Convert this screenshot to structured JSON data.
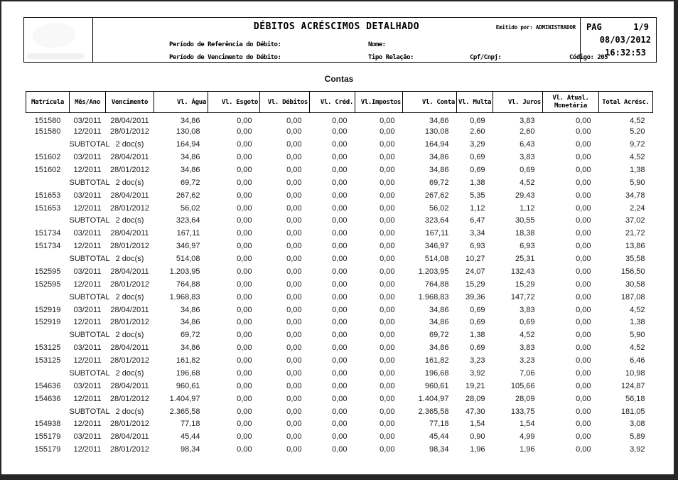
{
  "colors": {
    "frame": "#262626",
    "page_background": "#ffffff",
    "text": "#000000",
    "data_text": "#1a1a1a"
  },
  "header": {
    "title": "DÉBITOS ACRÉSCIMOS DETALHADO",
    "emitted_by": "Emitido por: ADMINISTRADOR",
    "pag_label": "PAG",
    "pag_value": "1/9",
    "date": "08/03/2012",
    "time": "16:32:53",
    "filters": {
      "ref_label": "Período de Referência do Débito:",
      "venc_label": "Período de Vencimento do Débito:",
      "nome_label": "Nome:",
      "tipo_label": "Tipo Relação:",
      "cpf_label": "Cpf/Cnpj:",
      "codigo_label": "Código: 205"
    }
  },
  "section_title": "Contas",
  "table": {
    "columns": [
      "Matrícula",
      "Mês/Ano",
      "Vencimento",
      "Vl. Água",
      "Vl. Esgoto",
      "Vl. Débitos",
      "Vl. Créd.",
      "Vl.Impostos",
      "Vl. Conta",
      "Vl. Multa",
      "Vl. Juros",
      "Vl. Atual. Monetária",
      "Total Acrésc."
    ],
    "rows": [
      [
        "151580",
        "03/2011",
        "28/04/2011",
        "34,86",
        "0,00",
        "0,00",
        "0,00",
        "0,00",
        "34,86",
        "0,69",
        "3,83",
        "0,00",
        "4,52"
      ],
      [
        "151580",
        "12/2011",
        "28/01/2012",
        "130,08",
        "0,00",
        "0,00",
        "0,00",
        "0,00",
        "130,08",
        "2,60",
        "2,60",
        "0,00",
        "5,20"
      ],
      [
        "",
        "SUBTOTAL",
        "2 doc(s)",
        "164,94",
        "0,00",
        "0,00",
        "0,00",
        "0,00",
        "164,94",
        "3,29",
        "6,43",
        "0,00",
        "9,72"
      ],
      [
        "151602",
        "03/2011",
        "28/04/2011",
        "34,86",
        "0,00",
        "0,00",
        "0,00",
        "0,00",
        "34,86",
        "0,69",
        "3,83",
        "0,00",
        "4,52"
      ],
      [
        "151602",
        "12/2011",
        "28/01/2012",
        "34,86",
        "0,00",
        "0,00",
        "0,00",
        "0,00",
        "34,86",
        "0,69",
        "0,69",
        "0,00",
        "1,38"
      ],
      [
        "",
        "SUBTOTAL",
        "2 doc(s)",
        "69,72",
        "0,00",
        "0,00",
        "0,00",
        "0,00",
        "69,72",
        "1,38",
        "4,52",
        "0,00",
        "5,90"
      ],
      [
        "151653",
        "03/2011",
        "28/04/2011",
        "267,62",
        "0,00",
        "0,00",
        "0,00",
        "0,00",
        "267,62",
        "5,35",
        "29,43",
        "0,00",
        "34,78"
      ],
      [
        "151653",
        "12/2011",
        "28/01/2012",
        "56,02",
        "0,00",
        "0,00",
        "0,00",
        "0,00",
        "56,02",
        "1,12",
        "1,12",
        "0,00",
        "2,24"
      ],
      [
        "",
        "SUBTOTAL",
        "2 doc(s)",
        "323,64",
        "0,00",
        "0,00",
        "0,00",
        "0,00",
        "323,64",
        "6,47",
        "30,55",
        "0,00",
        "37,02"
      ],
      [
        "151734",
        "03/2011",
        "28/04/2011",
        "167,11",
        "0,00",
        "0,00",
        "0,00",
        "0,00",
        "167,11",
        "3,34",
        "18,38",
        "0,00",
        "21,72"
      ],
      [
        "151734",
        "12/2011",
        "28/01/2012",
        "346,97",
        "0,00",
        "0,00",
        "0,00",
        "0,00",
        "346,97",
        "6,93",
        "6,93",
        "0,00",
        "13,86"
      ],
      [
        "",
        "SUBTOTAL",
        "2 doc(s)",
        "514,08",
        "0,00",
        "0,00",
        "0,00",
        "0,00",
        "514,08",
        "10,27",
        "25,31",
        "0,00",
        "35,58"
      ],
      [
        "152595",
        "03/2011",
        "28/04/2011",
        "1.203,95",
        "0,00",
        "0,00",
        "0,00",
        "0,00",
        "1.203,95",
        "24,07",
        "132,43",
        "0,00",
        "156,50"
      ],
      [
        "152595",
        "12/2011",
        "28/01/2012",
        "764,88",
        "0,00",
        "0,00",
        "0,00",
        "0,00",
        "764,88",
        "15,29",
        "15,29",
        "0,00",
        "30,58"
      ],
      [
        "",
        "SUBTOTAL",
        "2 doc(s)",
        "1.968,83",
        "0,00",
        "0,00",
        "0,00",
        "0,00",
        "1.968,83",
        "39,36",
        "147,72",
        "0,00",
        "187,08"
      ],
      [
        "152919",
        "03/2011",
        "28/04/2011",
        "34,86",
        "0,00",
        "0,00",
        "0,00",
        "0,00",
        "34,86",
        "0,69",
        "3,83",
        "0,00",
        "4,52"
      ],
      [
        "152919",
        "12/2011",
        "28/01/2012",
        "34,86",
        "0,00",
        "0,00",
        "0,00",
        "0,00",
        "34,86",
        "0,69",
        "0,69",
        "0,00",
        "1,38"
      ],
      [
        "",
        "SUBTOTAL",
        "2 doc(s)",
        "69,72",
        "0,00",
        "0,00",
        "0,00",
        "0,00",
        "69,72",
        "1,38",
        "4,52",
        "0,00",
        "5,90"
      ],
      [
        "153125",
        "03/2011",
        "28/04/2011",
        "34,86",
        "0,00",
        "0,00",
        "0,00",
        "0,00",
        "34,86",
        "0,69",
        "3,83",
        "0,00",
        "4,52"
      ],
      [
        "153125",
        "12/2011",
        "28/01/2012",
        "161,82",
        "0,00",
        "0,00",
        "0,00",
        "0,00",
        "161,82",
        "3,23",
        "3,23",
        "0,00",
        "6,46"
      ],
      [
        "",
        "SUBTOTAL",
        "2 doc(s)",
        "196,68",
        "0,00",
        "0,00",
        "0,00",
        "0,00",
        "196,68",
        "3,92",
        "7,06",
        "0,00",
        "10,98"
      ],
      [
        "154636",
        "03/2011",
        "28/04/2011",
        "960,61",
        "0,00",
        "0,00",
        "0,00",
        "0,00",
        "960,61",
        "19,21",
        "105,66",
        "0,00",
        "124,87"
      ],
      [
        "154636",
        "12/2011",
        "28/01/2012",
        "1.404,97",
        "0,00",
        "0,00",
        "0,00",
        "0,00",
        "1.404,97",
        "28,09",
        "28,09",
        "0,00",
        "56,18"
      ],
      [
        "",
        "SUBTOTAL",
        "2 doc(s)",
        "2.365,58",
        "0,00",
        "0,00",
        "0,00",
        "0,00",
        "2.365,58",
        "47,30",
        "133,75",
        "0,00",
        "181,05"
      ],
      [
        "154938",
        "12/2011",
        "28/01/2012",
        "77,18",
        "0,00",
        "0,00",
        "0,00",
        "0,00",
        "77,18",
        "1,54",
        "1,54",
        "0,00",
        "3,08"
      ],
      [
        "155179",
        "03/2011",
        "28/04/2011",
        "45,44",
        "0,00",
        "0,00",
        "0,00",
        "0,00",
        "45,44",
        "0,90",
        "4,99",
        "0,00",
        "5,89"
      ],
      [
        "155179",
        "12/2011",
        "28/01/2012",
        "98,34",
        "0,00",
        "0,00",
        "0,00",
        "0,00",
        "98,34",
        "1,96",
        "1,96",
        "0,00",
        "3,92"
      ]
    ]
  }
}
